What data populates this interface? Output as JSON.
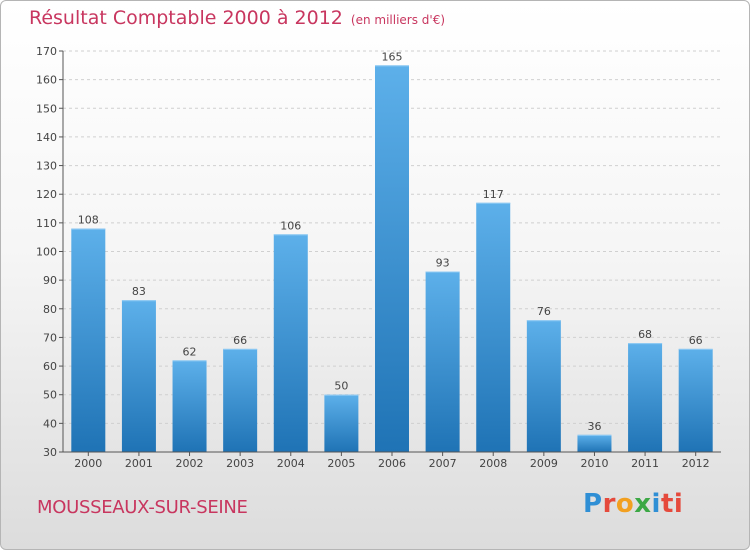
{
  "header": {
    "title": "Résultat Comptable 2000 à 2012",
    "subtitle": "(en milliers d'€)"
  },
  "footer": {
    "commune": "MOUSSEAUX-SUR-SEINE",
    "logo_letters": [
      "P",
      "r",
      "o",
      "x",
      "i",
      "ti"
    ]
  },
  "colors": {
    "title": "#c8365f",
    "bar_top": "#5db0ea",
    "bar_bottom": "#1f73b5",
    "axis": "#555555"
  },
  "chart_data": {
    "type": "bar",
    "title": "Résultat Comptable 2000 à 2012",
    "subtitle": "(en milliers d'€)",
    "categories": [
      "2000",
      "2001",
      "2002",
      "2003",
      "2004",
      "2005",
      "2006",
      "2007",
      "2008",
      "2009",
      "2010",
      "2011",
      "2012"
    ],
    "values": [
      108,
      83,
      62,
      66,
      106,
      50,
      165,
      93,
      117,
      76,
      36,
      68,
      66
    ],
    "ylim": [
      30,
      170
    ],
    "yticks": [
      30,
      40,
      50,
      60,
      70,
      80,
      90,
      100,
      110,
      120,
      130,
      140,
      150,
      160,
      170
    ],
    "grid": true,
    "legend": "none"
  }
}
